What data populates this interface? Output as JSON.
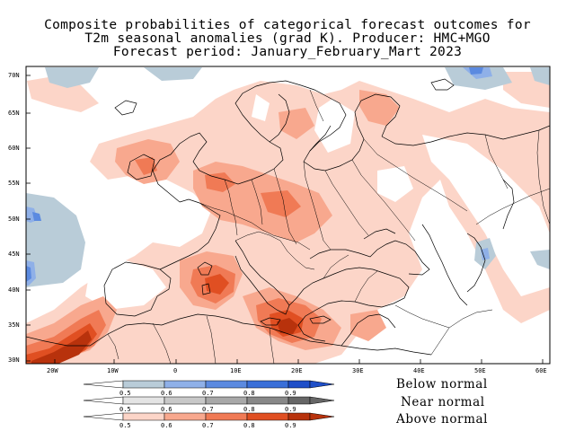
{
  "title": {
    "line1": "Composite probabilities of categorical forecast outcomes for",
    "line2": "T2m seasonal anomalies (grad K). Producer: HMC+MGO",
    "line3": "Forecast period: January_February_Mart 2023"
  },
  "axes": {
    "lat_labels": [
      "70N",
      "65N",
      "60N",
      "55N",
      "50N",
      "45N",
      "40N",
      "35N",
      "30N"
    ],
    "lon_labels": [
      "20W",
      "10W",
      "0",
      "10E",
      "20E",
      "30E",
      "40E",
      "50E",
      "60E"
    ]
  },
  "legend": {
    "below": {
      "label": "Below normal",
      "ticks": [
        "0.5",
        "0.6",
        "0.7",
        "0.8",
        "0.9"
      ],
      "colors": [
        "#b9ccd8",
        "#8fb0e8",
        "#5b8ae0",
        "#3a6fd8",
        "#1f4fc8"
      ]
    },
    "near": {
      "label": "Near normal",
      "ticks": [
        "0.5",
        "0.6",
        "0.7",
        "0.8",
        "0.9"
      ],
      "colors": [
        "#e4e4e4",
        "#c8c8c8",
        "#a8a8a8",
        "#888888",
        "#666666"
      ]
    },
    "above": {
      "label": "Above normal",
      "ticks": [
        "0.5",
        "0.6",
        "0.7",
        "0.8",
        "0.9"
      ],
      "colors": [
        "#fcd5c8",
        "#f8a88e",
        "#f07a55",
        "#e04f22",
        "#b8320c"
      ]
    }
  }
}
